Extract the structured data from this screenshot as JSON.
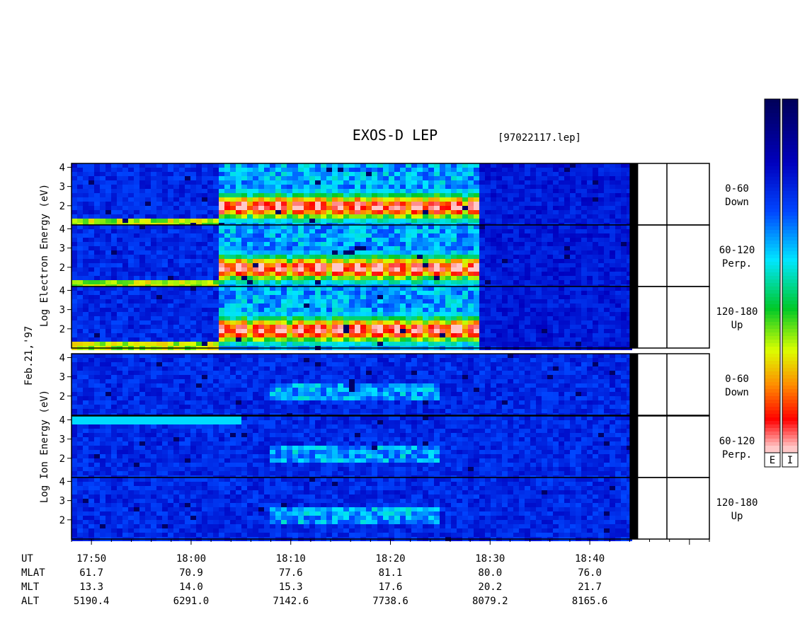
{
  "title": "EXOS-D LEP",
  "file_label": "[97022117.lep]",
  "date_label": "Feb.21,'97",
  "colorbar_labels": [
    "E",
    "I"
  ],
  "chart_data": {
    "type": "heatmap",
    "x_axis": {
      "time_range": [
        "17:48",
        "18:52"
      ],
      "major_ticks": [
        "17:50",
        "18:00",
        "18:10",
        "18:20",
        "18:30",
        "18:40"
      ]
    },
    "groups": [
      {
        "ylabel": [
          "Log",
          "Electron",
          "Energy",
          "(eV)"
        ],
        "species": "electron"
      },
      {
        "ylabel": [
          "Log",
          "Ion",
          "Energy",
          "(eV)"
        ],
        "species": "ion"
      }
    ],
    "panels": [
      {
        "species": "electron",
        "pitch": "0-60",
        "direction": "Down",
        "yticks": [
          "4",
          "3",
          "2"
        ]
      },
      {
        "species": "electron",
        "pitch": "60-120",
        "direction": "Perp.",
        "yticks": [
          "4",
          "3",
          "2"
        ]
      },
      {
        "species": "electron",
        "pitch": "120-180",
        "direction": "Up",
        "yticks": [
          "4",
          "3",
          "2"
        ]
      },
      {
        "species": "ion",
        "pitch": "0-60",
        "direction": "Down",
        "yticks": [
          "4",
          "3",
          "2"
        ]
      },
      {
        "species": "ion",
        "pitch": "60-120",
        "direction": "Perp.",
        "yticks": [
          "4",
          "3",
          "2"
        ]
      },
      {
        "species": "ion",
        "pitch": "120-180",
        "direction": "Up",
        "yticks": [
          "4",
          "3",
          "2"
        ]
      }
    ],
    "ylim_log_eV": [
      1,
      4.2
    ],
    "orbit_table": {
      "row_labels": [
        "UT",
        "MLAT",
        "MLT",
        "ALT"
      ],
      "columns": [
        {
          "UT": "17:50",
          "MLAT": "61.7",
          "MLT": "13.3",
          "ALT": "5190.4"
        },
        {
          "UT": "18:00",
          "MLAT": "70.9",
          "MLT": "14.0",
          "ALT": "6291.0"
        },
        {
          "UT": "18:10",
          "MLAT": "77.6",
          "MLT": "15.3",
          "ALT": "7142.6"
        },
        {
          "UT": "18:20",
          "MLAT": "81.1",
          "MLT": "17.6",
          "ALT": "7738.6"
        },
        {
          "UT": "18:30",
          "MLAT": "80.0",
          "MLT": "20.2",
          "ALT": "8079.2"
        },
        {
          "UT": "18:40",
          "MLAT": "76.0",
          "MLT": "21.7",
          "ALT": "8165.6"
        }
      ]
    },
    "data_end_time": "18:44"
  },
  "colors": {
    "scale": [
      "#ffffff",
      "#ffc8c8",
      "#ff0000",
      "#ff8800",
      "#ffff00",
      "#00cc00",
      "#00ffff",
      "#0060ff",
      "#0000aa",
      "#000050"
    ]
  }
}
